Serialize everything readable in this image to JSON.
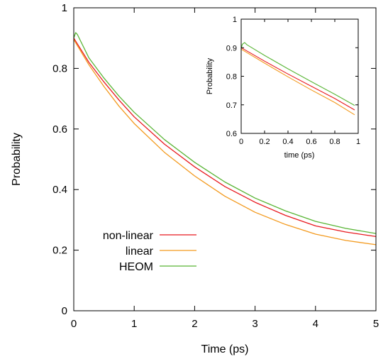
{
  "chart_data": [
    {
      "type": "line",
      "title": "",
      "xlabel": "Time (ps)",
      "ylabel": "Probability",
      "xlim": [
        0,
        5
      ],
      "ylim": [
        0,
        1
      ],
      "xticks": [
        "0",
        "1",
        "2",
        "3",
        "4",
        "5"
      ],
      "yticks": [
        "0",
        "0.2",
        "0.4",
        "0.6",
        "0.8",
        "1"
      ],
      "grid": false,
      "legend_position": "bottom-left",
      "series": [
        {
          "name": "non-linear",
          "color": "#e8191f",
          "x": [
            0,
            0.25,
            0.5,
            0.75,
            1.0,
            1.5,
            2.0,
            2.5,
            3.0,
            3.5,
            4.0,
            4.5,
            5.0
          ],
          "y": [
            0.9,
            0.82,
            0.755,
            0.695,
            0.64,
            0.55,
            0.475,
            0.41,
            0.358,
            0.315,
            0.28,
            0.26,
            0.245
          ]
        },
        {
          "name": "linear",
          "color": "#f39a1e",
          "x": [
            0,
            0.25,
            0.5,
            0.75,
            1.0,
            1.5,
            2.0,
            2.5,
            3.0,
            3.5,
            4.0,
            4.5,
            5.0
          ],
          "y": [
            0.895,
            0.812,
            0.74,
            0.675,
            0.618,
            0.523,
            0.445,
            0.378,
            0.325,
            0.285,
            0.253,
            0.232,
            0.218
          ]
        },
        {
          "name": "HEOM",
          "color": "#59b535",
          "x": [
            0,
            0.03,
            0.06,
            0.25,
            0.5,
            0.75,
            1.0,
            1.5,
            2.0,
            2.5,
            3.0,
            3.5,
            4.0,
            4.5,
            5.0
          ],
          "y": [
            0.9,
            0.918,
            0.912,
            0.835,
            0.768,
            0.708,
            0.655,
            0.565,
            0.49,
            0.425,
            0.372,
            0.33,
            0.295,
            0.272,
            0.255
          ]
        }
      ]
    },
    {
      "type": "line",
      "title": "",
      "xlabel": "time (ps)",
      "ylabel": "Probability",
      "xlim": [
        0,
        1
      ],
      "ylim": [
        0.6,
        1
      ],
      "xticks": [
        "0",
        "0.2",
        "0.4",
        "0.6",
        "0.8",
        "1"
      ],
      "yticks": [
        "0.6",
        "0.7",
        "0.8",
        "0.9",
        "1"
      ],
      "grid": false,
      "series": [
        {
          "color": "#e8191f",
          "x": [
            0,
            0.2,
            0.4,
            0.6,
            0.8,
            0.97
          ],
          "y": [
            0.9,
            0.853,
            0.808,
            0.765,
            0.722,
            0.682
          ]
        },
        {
          "color": "#f39a1e",
          "x": [
            0,
            0.2,
            0.4,
            0.6,
            0.8,
            0.97
          ],
          "y": [
            0.895,
            0.846,
            0.798,
            0.752,
            0.708,
            0.665
          ]
        },
        {
          "color": "#59b535",
          "x": [
            0,
            0.01,
            0.03,
            0.05,
            0.2,
            0.4,
            0.6,
            0.8,
            0.97
          ],
          "y": [
            0.895,
            0.912,
            0.918,
            0.91,
            0.873,
            0.826,
            0.781,
            0.737,
            0.698
          ]
        }
      ]
    }
  ]
}
